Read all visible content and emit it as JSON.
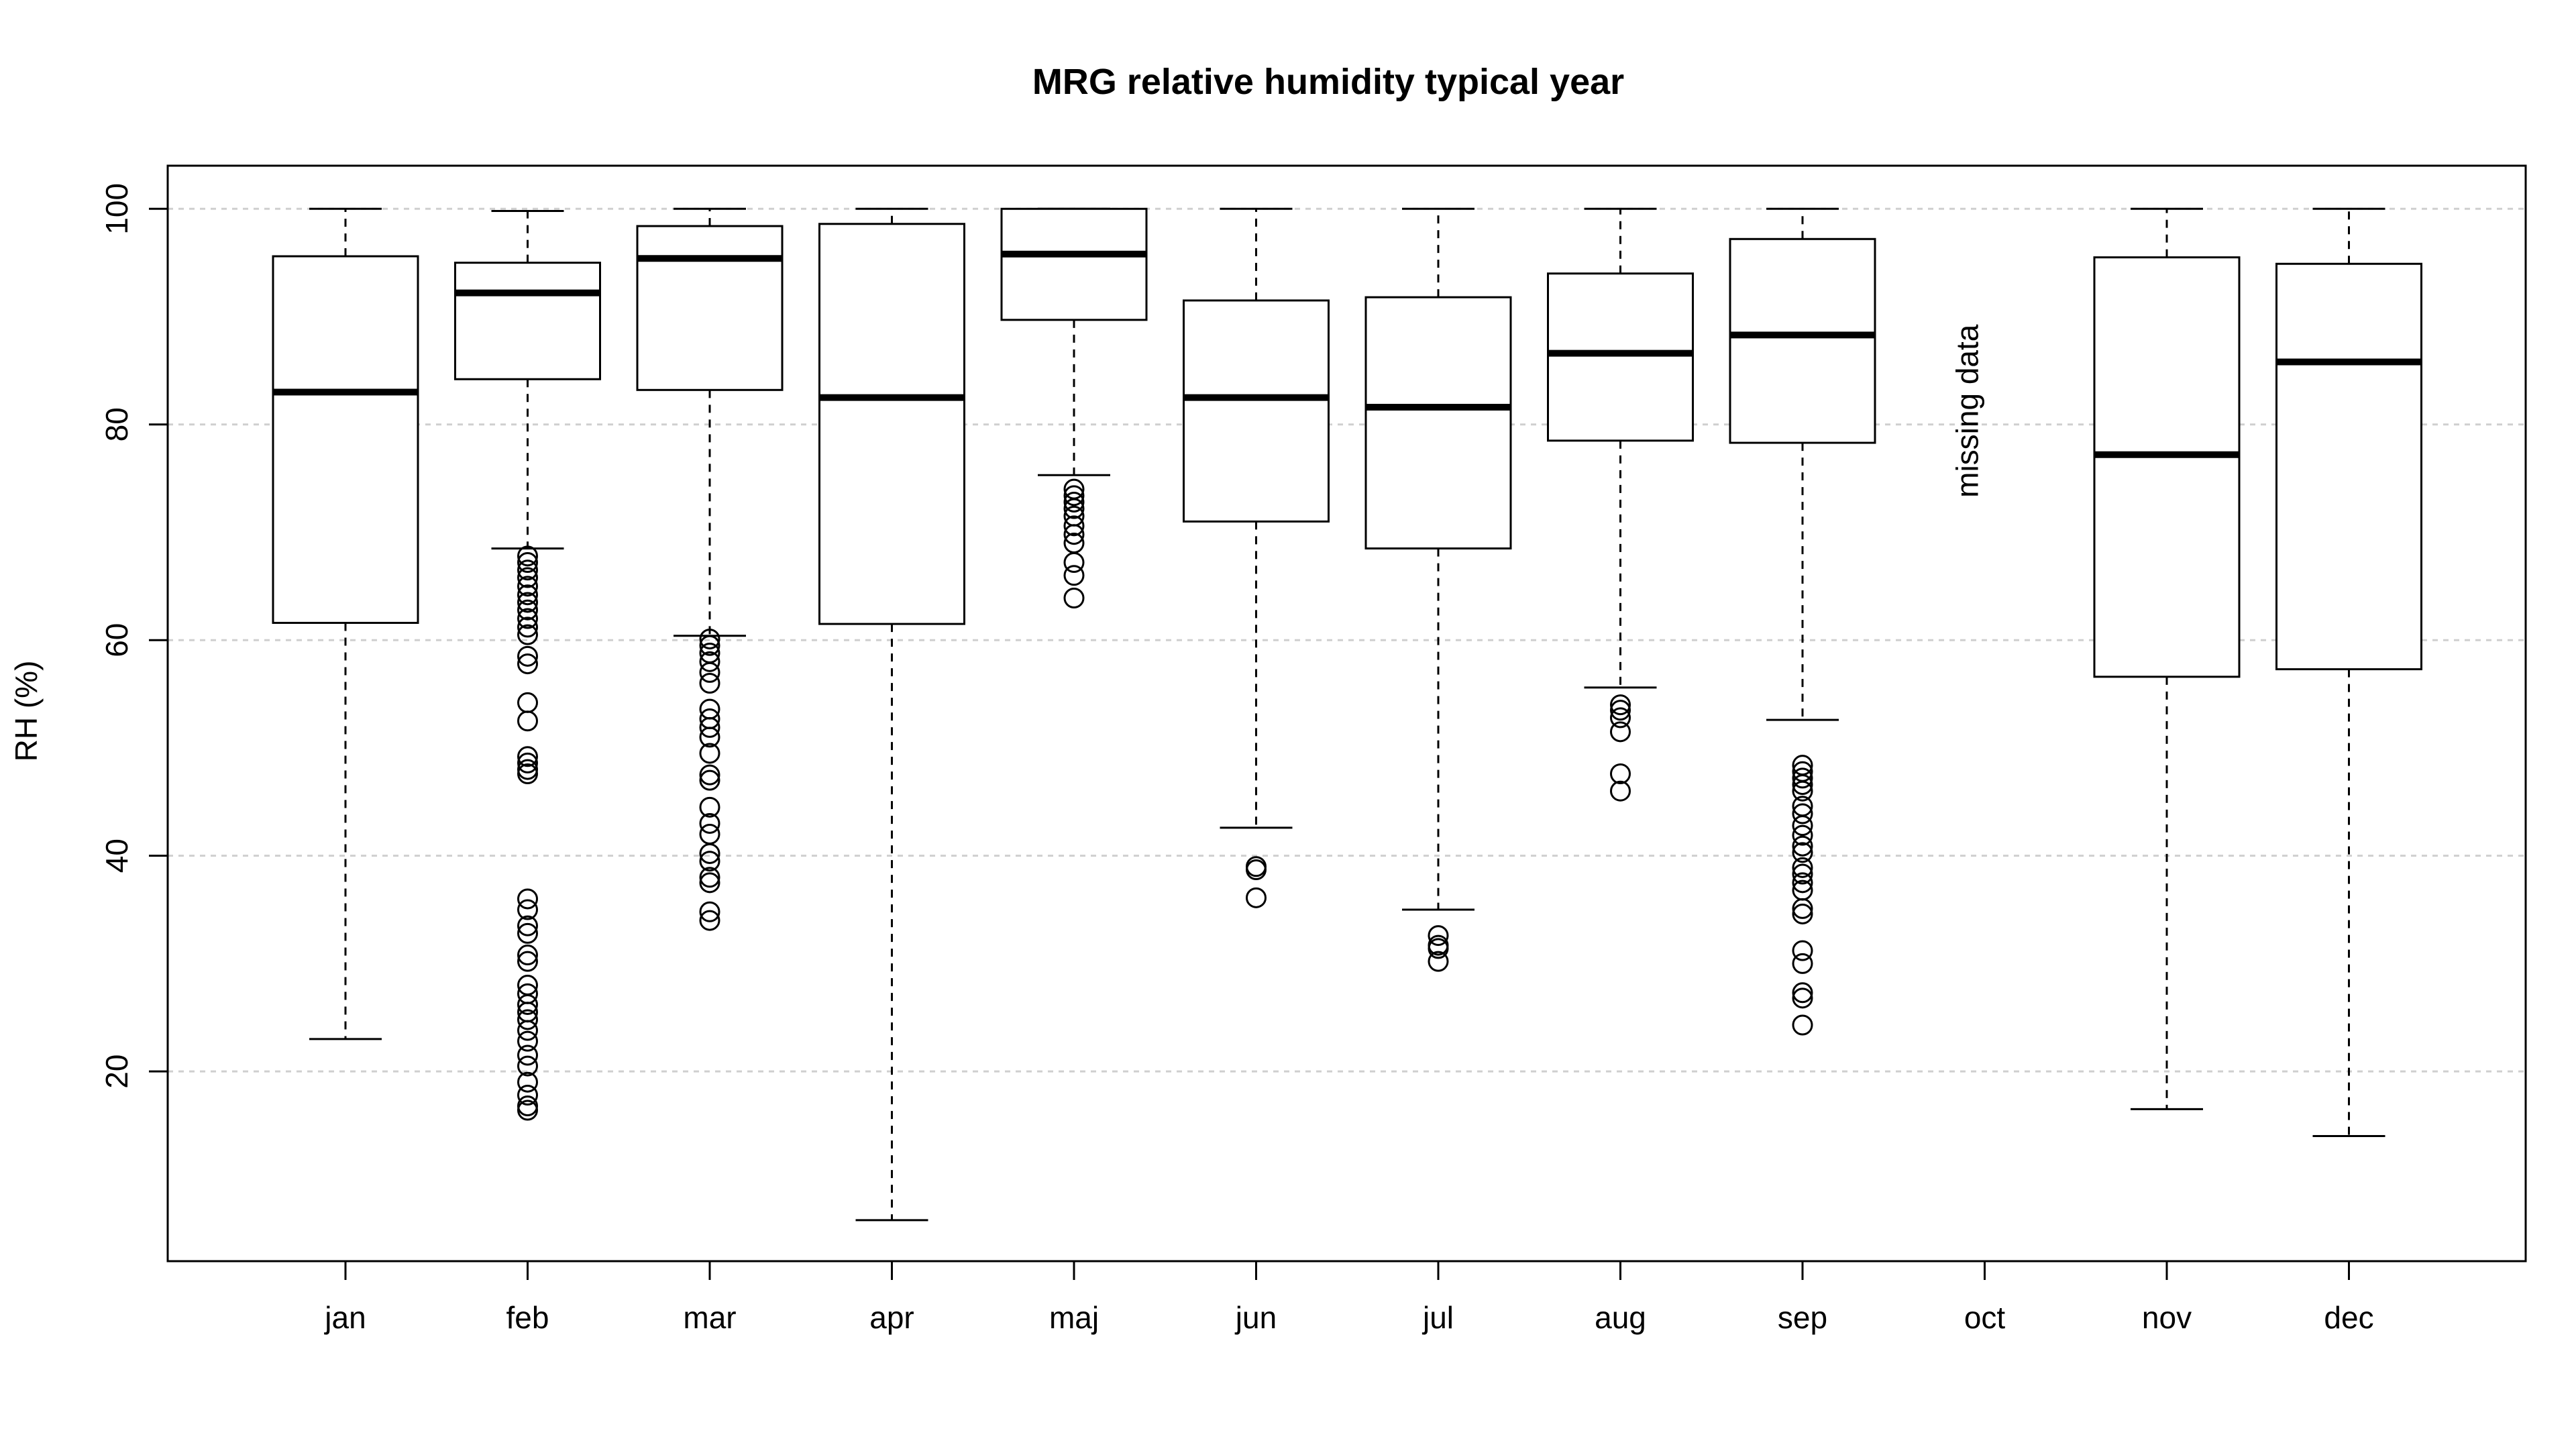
{
  "chart_data": {
    "type": "box",
    "title": "MRG relative humidity typical year",
    "xlabel": "",
    "ylabel": "RH (%)",
    "ylim": [
      2.4,
      104
    ],
    "yticks": [
      20,
      40,
      60,
      80,
      100
    ],
    "grid": "horizontal dotted at y ticks",
    "categories": [
      "jan",
      "feb",
      "mar",
      "apr",
      "maj",
      "jun",
      "jul",
      "aug",
      "sep",
      "oct",
      "nov",
      "dec"
    ],
    "annotation": {
      "text": "missing data",
      "category": "oct",
      "y": 80
    },
    "boxes": [
      {
        "label": "jan",
        "min": 23,
        "q1": 61.6,
        "median": 83,
        "q3": 95.6,
        "max": 100,
        "outliers": []
      },
      {
        "label": "feb",
        "min": 68.5,
        "q1": 84.2,
        "median": 92.2,
        "q3": 95,
        "max": 99.8,
        "outliers": [
          67.8,
          67.2,
          66.5,
          65.8,
          65.0,
          64.2,
          63.5,
          62.8,
          62.0,
          61.2,
          60.5,
          58.5,
          57.8,
          54.2,
          52.5,
          49.2,
          48.6,
          48.0,
          47.6,
          36.0,
          35.0,
          33.5,
          32.8,
          30.8,
          30.2,
          28.0,
          27.2,
          26.2,
          25.5,
          24.8,
          23.8,
          22.8,
          21.5,
          20.5,
          19.0,
          17.8,
          16.8,
          16.4
        ]
      },
      {
        "label": "mar",
        "min": 60.4,
        "q1": 83.2,
        "median": 95.4,
        "q3": 98.4,
        "max": 100,
        "outliers": [
          60.1,
          59.5,
          58.8,
          58.0,
          57.0,
          56.0,
          53.6,
          52.7,
          51.9,
          51.0,
          49.5,
          47.5,
          47.0,
          44.5,
          43.0,
          42.0,
          40.2,
          39.5,
          38.0,
          37.5,
          34.8,
          34.0
        ]
      },
      {
        "label": "apr",
        "min": 6.2,
        "q1": 61.5,
        "median": 82.5,
        "q3": 98.6,
        "max": 100,
        "outliers": []
      },
      {
        "label": "maj",
        "min": 75.3,
        "q1": 89.7,
        "median": 95.8,
        "q3": 100,
        "max": 100,
        "outliers": [
          74.0,
          73.4,
          72.8,
          72.2,
          71.5,
          70.6,
          69.8,
          69.0,
          67.2,
          66.0,
          63.9
        ]
      },
      {
        "label": "jun",
        "min": 42.6,
        "q1": 71.0,
        "median": 82.5,
        "q3": 91.5,
        "max": 100,
        "outliers": [
          39.0,
          38.7,
          36.1
        ]
      },
      {
        "label": "jul",
        "min": 35.0,
        "q1": 68.5,
        "median": 81.6,
        "q3": 91.8,
        "max": 100,
        "outliers": [
          32.6,
          31.7,
          31.4,
          30.2
        ]
      },
      {
        "label": "aug",
        "min": 55.6,
        "q1": 78.5,
        "median": 86.6,
        "q3": 94.0,
        "max": 100,
        "outliers": [
          54.0,
          53.5,
          52.8,
          51.5,
          47.6,
          46.0
        ]
      },
      {
        "label": "sep",
        "min": 52.6,
        "q1": 78.3,
        "median": 88.3,
        "q3": 97.2,
        "max": 100,
        "outliers": [
          48.4,
          47.8,
          47.2,
          46.6,
          46.0,
          44.6,
          43.9,
          42.8,
          41.9,
          40.9,
          40.3,
          38.9,
          38.3,
          37.5,
          36.8,
          35.1,
          34.6,
          31.2,
          30.0,
          27.3,
          26.8,
          24.3
        ]
      },
      {
        "label": "oct",
        "missing": true
      },
      {
        "label": "nov",
        "min": 16.5,
        "q1": 56.6,
        "median": 77.2,
        "q3": 95.5,
        "max": 100,
        "outliers": []
      },
      {
        "label": "dec",
        "min": 14.0,
        "q1": 57.3,
        "median": 85.8,
        "q3": 94.9,
        "max": 100,
        "outliers": []
      }
    ]
  }
}
